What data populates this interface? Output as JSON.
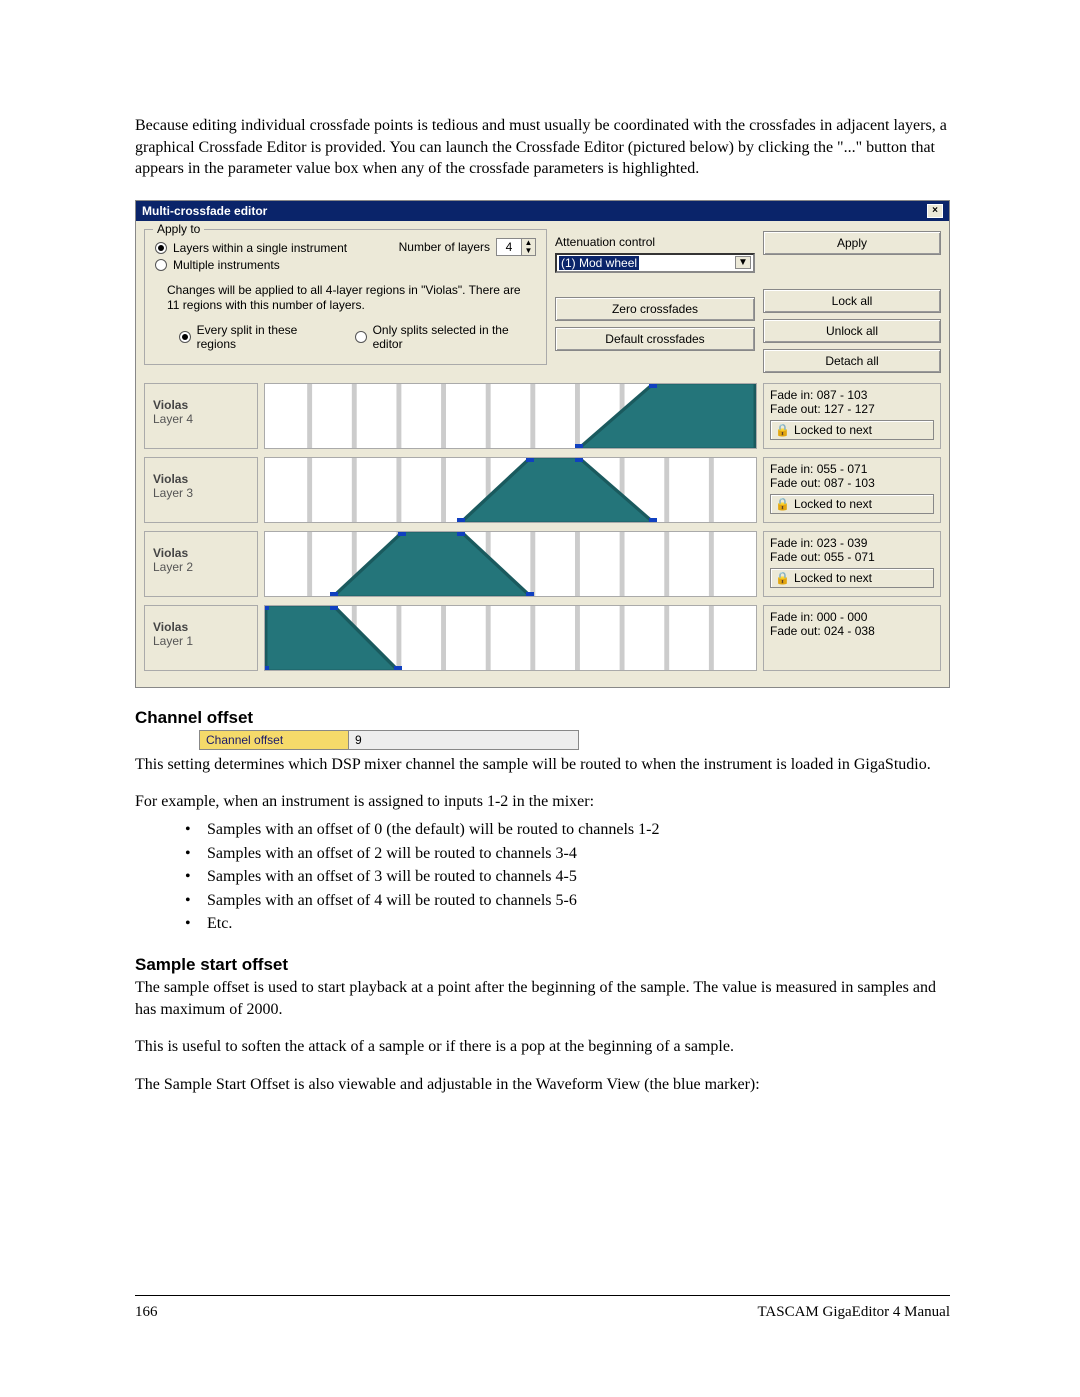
{
  "intro": "Because editing individual crossfade points is tedious and must usually be coordinated with the crossfades in adjacent layers, a graphical Crossfade Editor is provided.  You can launch the Crossfade Editor (pictured below) by clicking the \"...\" button that appears in the parameter value box when any of the crossfade parameters is highlighted.",
  "editor": {
    "title": "Multi-crossfade editor",
    "apply_to_legend": "Apply to",
    "opt_layers": "Layers within a single instrument",
    "opt_multi": "Multiple instruments",
    "num_layers_label": "Number of layers",
    "num_layers_value": "4",
    "note": "Changes will be applied to all 4-layer regions in \"Violas\".  There are 11 regions with this number of layers.",
    "opt_every": "Every split in these regions",
    "opt_only": "Only splits selected in the editor",
    "att_label": "Attenuation control",
    "att_value": "(1) Mod wheel",
    "btn_apply": "Apply",
    "btn_zero": "Zero crossfades",
    "btn_default": "Default crossfades",
    "btn_lock": "Lock all",
    "btn_unlock": "Unlock all",
    "btn_detach": "Detach all",
    "locked_label": "Locked to next",
    "layers": [
      {
        "name": "Violas",
        "sub": "Layer 4",
        "fade_in": "087 - 103",
        "fade_out": "127 - 127",
        "locked": true,
        "points": [
          [
            0.64,
            1.0
          ],
          [
            0.79,
            0.0
          ],
          [
            1.0,
            0.0
          ],
          [
            1.0,
            1.0
          ]
        ],
        "handles": [
          [
            0.64,
            1.0
          ],
          [
            0.79,
            0.0
          ]
        ]
      },
      {
        "name": "Violas",
        "sub": "Layer 3",
        "fade_in": "055 - 071",
        "fade_out": "087 - 103",
        "locked": true,
        "points": [
          [
            0.4,
            1.0
          ],
          [
            0.54,
            0.0
          ],
          [
            0.64,
            0.0
          ],
          [
            0.79,
            1.0
          ]
        ],
        "handles": [
          [
            0.4,
            1.0
          ],
          [
            0.54,
            0.0
          ],
          [
            0.64,
            0.0
          ],
          [
            0.79,
            1.0
          ]
        ]
      },
      {
        "name": "Violas",
        "sub": "Layer 2",
        "fade_in": "023 - 039",
        "fade_out": "055 - 071",
        "locked": true,
        "points": [
          [
            0.14,
            1.0
          ],
          [
            0.28,
            0.0
          ],
          [
            0.4,
            0.0
          ],
          [
            0.54,
            1.0
          ]
        ],
        "handles": [
          [
            0.14,
            1.0
          ],
          [
            0.28,
            0.0
          ],
          [
            0.4,
            0.0
          ],
          [
            0.54,
            1.0
          ]
        ]
      },
      {
        "name": "Violas",
        "sub": "Layer 1",
        "fade_in": "000 - 000",
        "fade_out": "024 - 038",
        "locked": false,
        "points": [
          [
            0.0,
            1.0
          ],
          [
            0.0,
            0.0
          ],
          [
            0.14,
            0.0
          ],
          [
            0.27,
            1.0
          ]
        ],
        "handles": [
          [
            0.0,
            1.0
          ],
          [
            0.0,
            0.0
          ],
          [
            0.14,
            0.0
          ],
          [
            0.27,
            1.0
          ]
        ]
      }
    ],
    "grid_divisions": 11
  },
  "channel_offset": {
    "heading": "Channel offset",
    "param_label": "Channel offset",
    "param_value": "9",
    "p1": "This setting determines which DSP mixer channel the sample will be routed to when the instrument is loaded in GigaStudio.",
    "p2": "For example, when an instrument is assigned to inputs 1-2 in the mixer:",
    "bullets": [
      "Samples with an offset of 0 (the default) will be routed to channels 1-2",
      "Samples with an offset of 2 will be routed to channels 3-4",
      "Samples with an offset of 3 will be routed to channels 4-5",
      "Samples with an offset of 4 will be routed to channels 5-6",
      "Etc."
    ]
  },
  "sample_start": {
    "heading": "Sample start offset",
    "p1": "The sample offset is used to start playback at a point after the beginning of the sample.  The value is measured in samples and has maximum of 2000.",
    "p2": "This is useful to soften the attack of a sample or if there is a pop at the beginning of a sample.",
    "p3": "The Sample Start Offset is also viewable and adjustable in the Waveform View (the blue marker):"
  },
  "footer": {
    "page": "166",
    "title": "TASCAM GigaEditor 4 Manual"
  }
}
